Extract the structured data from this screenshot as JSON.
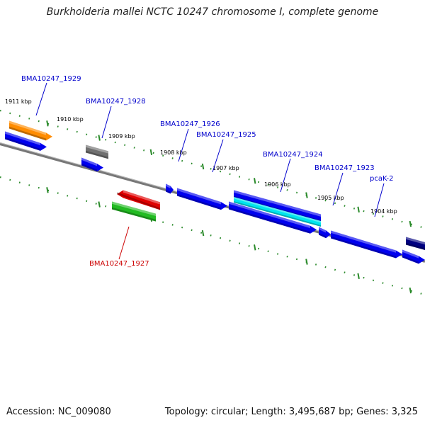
{
  "title": "Burkholderia mallei NCTC 10247 chromosome I, complete genome",
  "footer": {
    "accession": "Accession: NC_009080",
    "summary": "Topology: circular; Length: 3,495,687 bp; Genes: 3,325"
  },
  "colors": {
    "backbone": "#808080",
    "tick": "#2a8a2a",
    "tick_label": "#000000",
    "gene_label_default": "#0000cc",
    "gene_label_highlight": "#cc0000"
  },
  "kbp_ticks": [
    "1911 kbp",
    "1910 kbp",
    "1909 kbp",
    "1908 kbp",
    "1907 kbp",
    "1906 kbp",
    "1905 kbp",
    "1904 kbp"
  ],
  "genes": [
    {
      "id": "BMA10247_1929",
      "color": "#ff8c00",
      "strand": "+"
    },
    {
      "id": "BMA10247_1928",
      "color": "#707070",
      "strand": "+"
    },
    {
      "id": "BMA10247_1927",
      "color": "#e00000",
      "strand": "-"
    },
    {
      "id": "BMA10247_1926",
      "color": "#0000ee",
      "strand": "+"
    },
    {
      "id": "BMA10247_1925",
      "color": "#0000ee",
      "strand": "+"
    },
    {
      "id": "BMA10247_1924",
      "color": "#00e5ee",
      "strand": "+"
    },
    {
      "id": "BMA10247_1923",
      "color": "#0000ee",
      "strand": "+"
    },
    {
      "id": "pcaK-2",
      "color": "#000080",
      "strand": "+"
    }
  ],
  "extra_features": [
    {
      "id": "cds-1929",
      "color": "#0000ee"
    },
    {
      "id": "cds-1928",
      "color": "#0000ee"
    },
    {
      "id": "cds-1927",
      "color": "#22bb22"
    },
    {
      "id": "cds-1925",
      "color": "#0000ee"
    },
    {
      "id": "cds-1924",
      "color": "#0000ee"
    },
    {
      "id": "cds-1923",
      "color": "#0000ee"
    },
    {
      "id": "cds-pcaK",
      "color": "#0000ee"
    }
  ]
}
